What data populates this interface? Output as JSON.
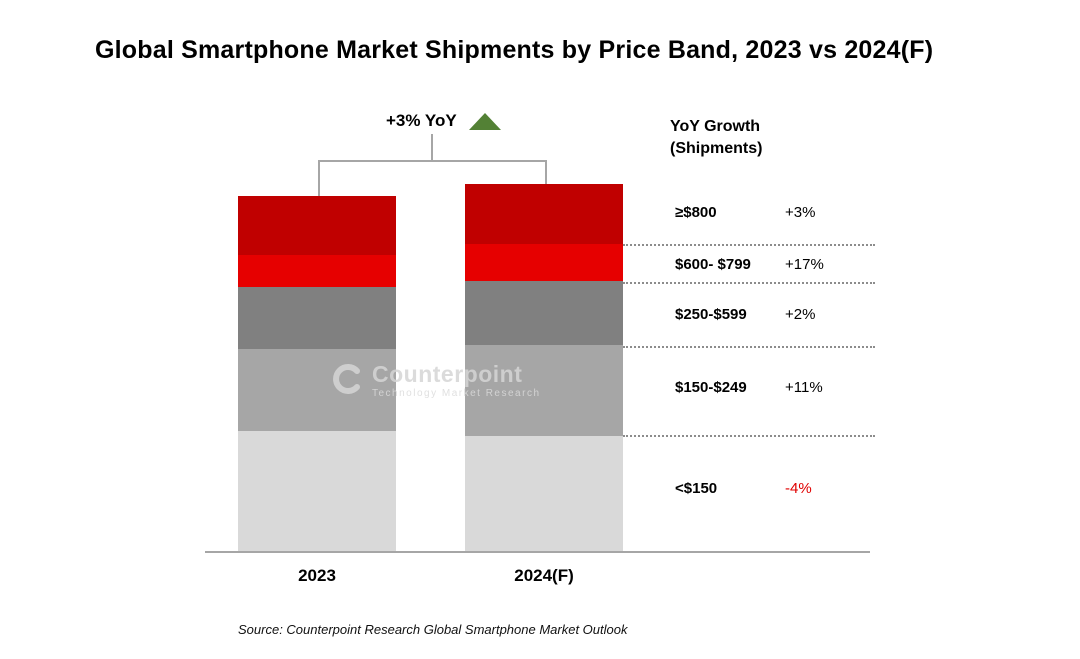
{
  "title": "Global Smartphone Market Shipments by Price Band, 2023 vs 2024(F)",
  "annotation": {
    "label": "+3% YoY",
    "arrow_color": "#538135"
  },
  "yoy_panel": {
    "header_line1": "YoY Growth",
    "header_line2": "(Shipments)",
    "negative_color": "#E00000",
    "rows": [
      {
        "band": "≥$800",
        "growth": "+3%"
      },
      {
        "band": "$600- $799",
        "growth": "+17%"
      },
      {
        "band": "$250-$599",
        "growth": "+2%"
      },
      {
        "band": "$150-$249",
        "growth": "+11%"
      },
      {
        "band": "<$150",
        "growth": "-4%"
      }
    ]
  },
  "watermark": {
    "name": "Counterpoint",
    "tagline": "Technology Market Research"
  },
  "source": "Source: Counterpoint Research Global Smartphone Market Outlook",
  "chart_data": {
    "type": "bar",
    "stacked": true,
    "title": "Global Smartphone Market Shipments by Price Band, 2023 vs 2024(F)",
    "categories": [
      "2023",
      "2024(F)"
    ],
    "total_yoy": "+3%",
    "unit": "relative shipment volume (2023 total = 100, values estimated from bar heights)",
    "series": [
      {
        "name": "<$150",
        "color": "#D9D9D9",
        "values": [
          34.0,
          32.6
        ],
        "yoy": "-4%"
      },
      {
        "name": "$150-$249",
        "color": "#A6A6A6",
        "values": [
          23.0,
          25.5
        ],
        "yoy": "+11%"
      },
      {
        "name": "$250-$599",
        "color": "#808080",
        "values": [
          17.5,
          17.9
        ],
        "yoy": "+2%"
      },
      {
        "name": "$600-$799",
        "color": "#E60000",
        "values": [
          9.0,
          10.5
        ],
        "yoy": "+17%"
      },
      {
        "name": "≥$800",
        "color": "#C00000",
        "values": [
          16.5,
          17.0
        ],
        "yoy": "+3%"
      }
    ],
    "axes": {
      "x_labels": [
        "2023",
        "2024(F)"
      ],
      "y_axis": "hidden",
      "grid": false
    },
    "legend_position": "none"
  }
}
